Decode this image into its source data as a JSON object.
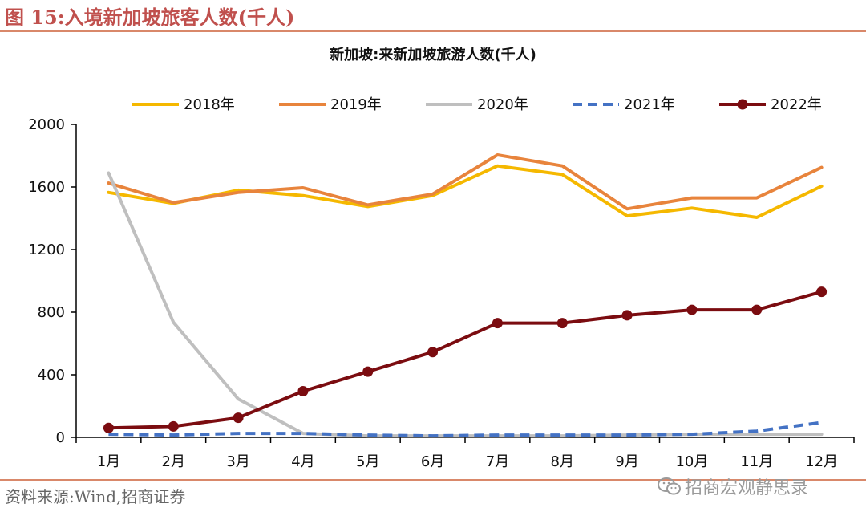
{
  "figure_title": "图 15:入境新加坡旅客人数(千人)",
  "source": "资料来源:Wind,招商证券",
  "watermark": "招商宏观静思录",
  "colors": {
    "title": "#c0504d",
    "rule": "#d9886a",
    "axis": "#000000"
  },
  "chart_data": {
    "type": "line",
    "title": "新加坡:来新加坡旅游人数(千人)",
    "categories": [
      "1月",
      "2月",
      "3月",
      "4月",
      "5月",
      "6月",
      "7月",
      "8月",
      "9月",
      "10月",
      "11月",
      "12月"
    ],
    "ylim": [
      0,
      2000
    ],
    "yticks": [
      0,
      400,
      800,
      1200,
      1600,
      2000
    ],
    "xlabel": "",
    "ylabel": "",
    "legend_position": "top",
    "grid": false,
    "series": [
      {
        "name": "2018年",
        "color": "#f5b800",
        "style": "solid",
        "markers": false,
        "values": [
          1565,
          1495,
          1580,
          1545,
          1475,
          1545,
          1735,
          1680,
          1415,
          1465,
          1405,
          1605
        ]
      },
      {
        "name": "2019年",
        "color": "#e8843c",
        "style": "solid",
        "markers": false,
        "values": [
          1625,
          1500,
          1565,
          1595,
          1485,
          1555,
          1805,
          1735,
          1460,
          1530,
          1530,
          1725
        ]
      },
      {
        "name": "2020年",
        "color": "#bfbfbf",
        "style": "solid",
        "markers": false,
        "values": [
          1690,
          735,
          245,
          25,
          10,
          10,
          10,
          10,
          15,
          20,
          20,
          20
        ]
      },
      {
        "name": "2021年",
        "color": "#4472c4",
        "style": "dashed",
        "markers": false,
        "values": [
          20,
          15,
          25,
          25,
          15,
          10,
          15,
          15,
          15,
          20,
          40,
          95
        ]
      },
      {
        "name": "2022年",
        "color": "#7b0c10",
        "style": "solid",
        "markers": true,
        "values": [
          60,
          70,
          125,
          295,
          420,
          545,
          730,
          730,
          780,
          815,
          815,
          930
        ]
      }
    ]
  }
}
